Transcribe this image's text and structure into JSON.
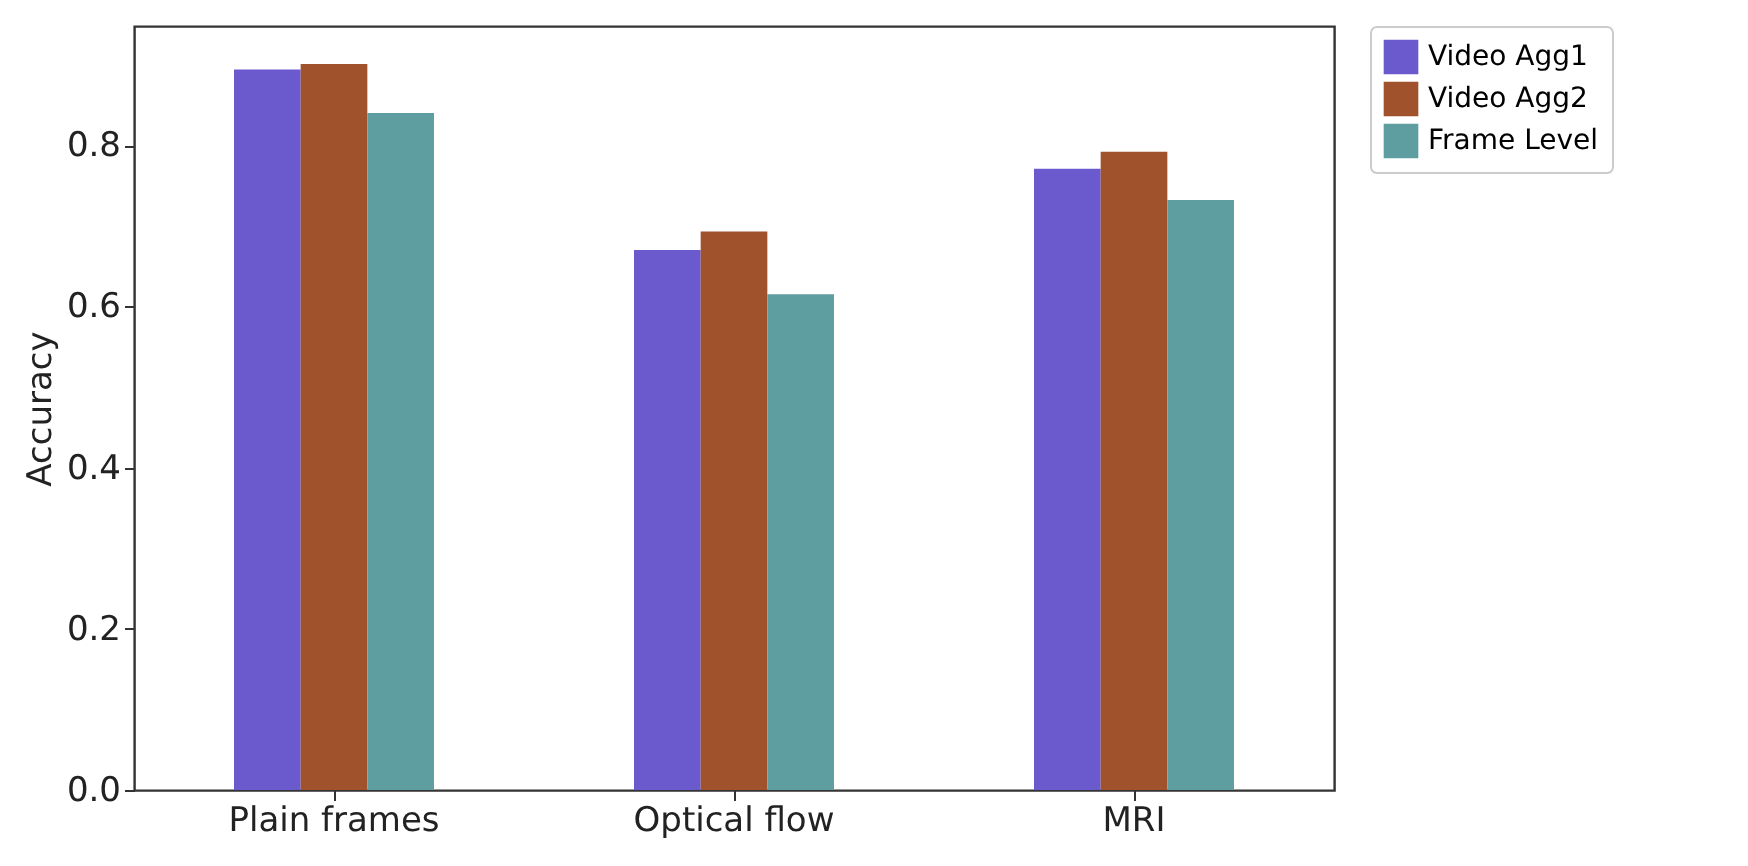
{
  "chart_data": {
    "type": "bar",
    "ylabel": "Accuracy",
    "categories": [
      "Plain frames",
      "Optical flow",
      "MRI"
    ],
    "series": [
      {
        "name": "Video Agg1",
        "color": "#6a5acd",
        "values": [
          0.894,
          0.67,
          0.771
        ]
      },
      {
        "name": "Video Agg2",
        "color": "#a0522d",
        "values": [
          0.901,
          0.693,
          0.792
        ]
      },
      {
        "name": "Frame Level",
        "color": "#5f9ea0",
        "values": [
          0.84,
          0.615,
          0.732
        ]
      }
    ],
    "ylim": [
      0,
      0.948
    ],
    "yticks": [
      {
        "value": 0,
        "label": "0.0"
      },
      0.2,
      0.4,
      0.6,
      0.8
    ],
    "grid": false,
    "legend": "right"
  }
}
